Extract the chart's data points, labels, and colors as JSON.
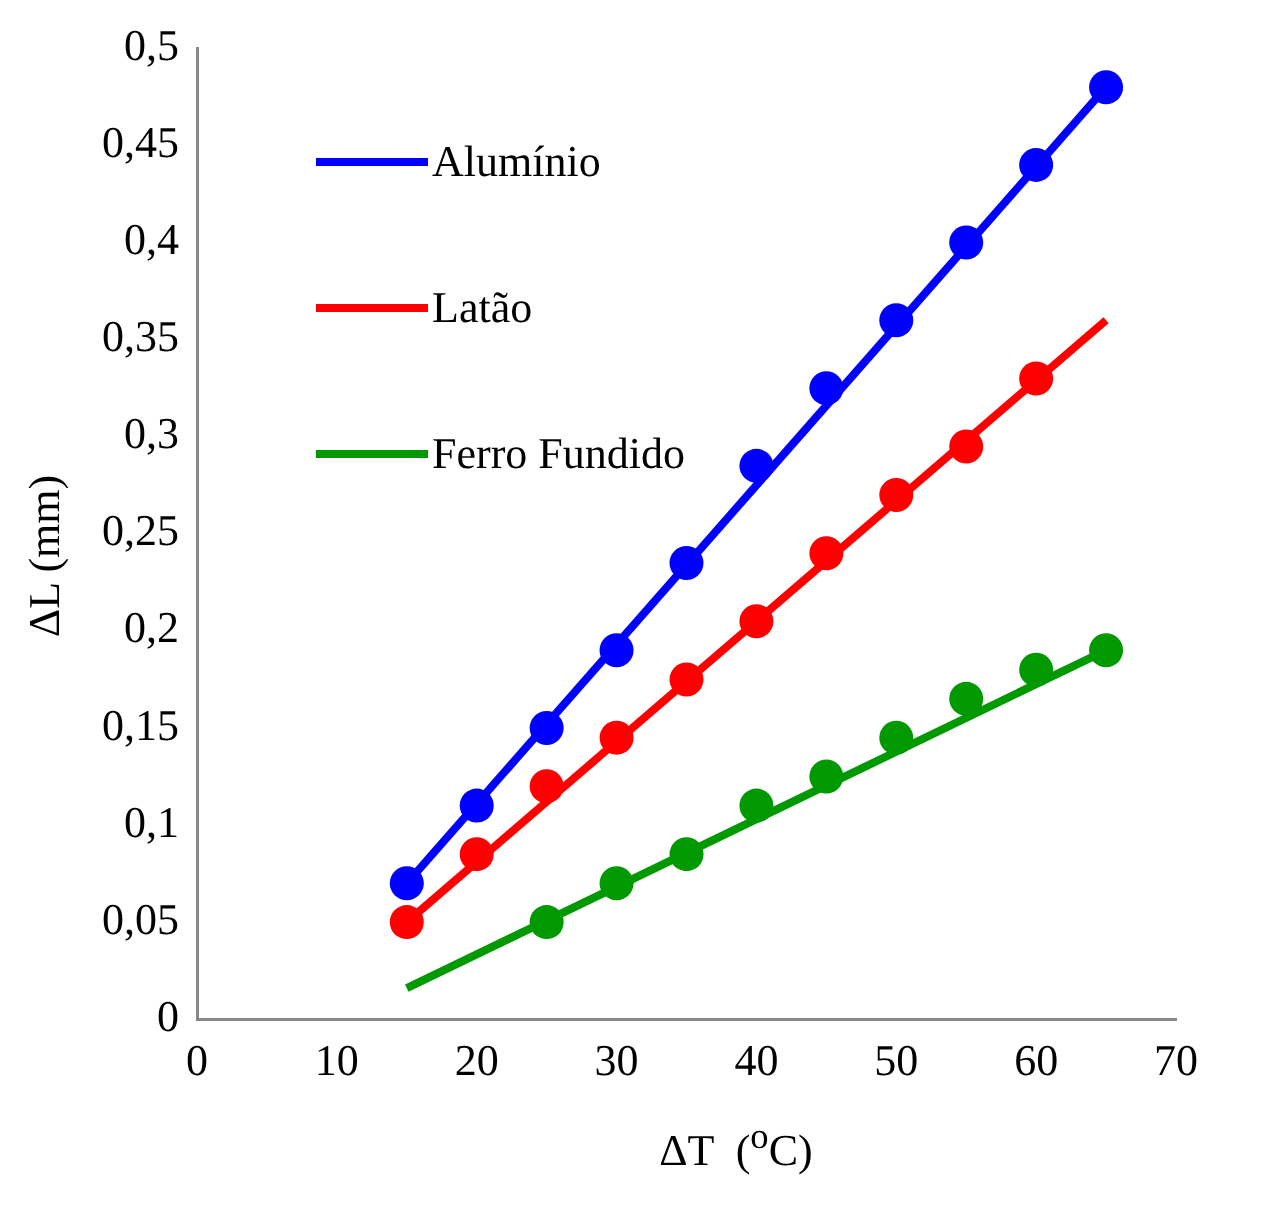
{
  "chart_data": {
    "type": "scatter",
    "xlabel": "ΔT  ($^{o}$C)",
    "ylabel": "ΔL  (mm)",
    "xlim": [
      0,
      70
    ],
    "xticks": [
      0,
      10,
      20,
      30,
      40,
      50,
      60,
      70
    ],
    "ylim": [
      0,
      0.5
    ],
    "yticks": [
      {
        "value": 0,
        "label": "0"
      },
      {
        "value": 0.05,
        "label": "0,05"
      },
      {
        "value": 0.1,
        "label": "0,1"
      },
      {
        "value": 0.15,
        "label": "0,15"
      },
      {
        "value": 0.2,
        "label": "0,2"
      },
      {
        "value": 0.25,
        "label": "0,25"
      },
      {
        "value": 0.3,
        "label": "0,3"
      },
      {
        "value": 0.35,
        "label": "0,35"
      },
      {
        "value": 0.4,
        "label": "0,4"
      },
      {
        "value": 0.45,
        "label": "0,45"
      },
      {
        "value": 0.5,
        "label": "0,5"
      }
    ],
    "grid": false,
    "legend": "top left",
    "marker": "circle",
    "series": [
      {
        "type": "line",
        "name": "Alumínio",
        "color": "#0000ff",
        "marker": "none",
        "x": [
          15,
          65
        ],
        "values": [
          0.07,
          0.48
        ]
      },
      {
        "type": "line",
        "name": "Latão",
        "color": "#ff0000",
        "marker": "none",
        "x": [
          15,
          65
        ],
        "values": [
          0.05,
          0.36
        ]
      },
      {
        "type": "line",
        "name": "Ferro Fundido",
        "color": "#009900",
        "marker": "none",
        "x": [
          15,
          65
        ],
        "values": [
          0.016,
          0.19
        ]
      },
      {
        "type": "scatter",
        "color": "#0000ff",
        "x": [
          15,
          20,
          25,
          30,
          35,
          40,
          45,
          50,
          55,
          60,
          65
        ],
        "values": [
          0.07,
          0.11,
          0.15,
          0.19,
          0.235,
          0.285,
          0.325,
          0.36,
          0.4,
          0.44,
          0.48
        ]
      },
      {
        "type": "scatter",
        "color": "#ff0000",
        "x": [
          15,
          20,
          25,
          30,
          35,
          40,
          45,
          50,
          55,
          60
        ],
        "values": [
          0.05,
          0.085,
          0.12,
          0.145,
          0.175,
          0.205,
          0.24,
          0.27,
          0.295,
          0.33
        ]
      },
      {
        "type": "scatter",
        "color": "#009900",
        "x": [
          25,
          30,
          35,
          40,
          45,
          50,
          55,
          60,
          65
        ],
        "values": [
          0.05,
          0.07,
          0.085,
          0.11,
          0.125,
          0.145,
          0.165,
          0.18,
          0.19
        ]
      }
    ]
  }
}
